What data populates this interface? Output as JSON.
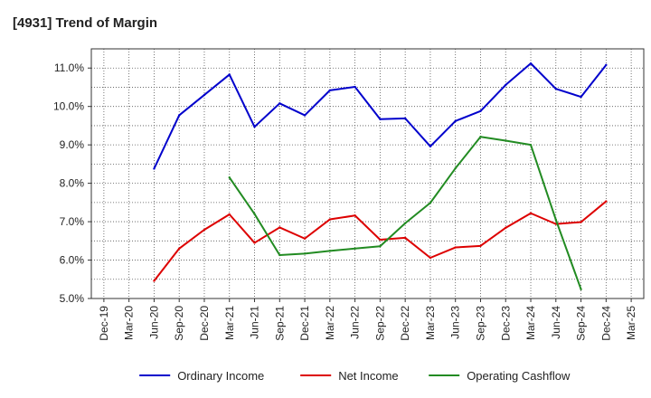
{
  "chart_data": {
    "type": "line",
    "title": "[4931]  Trend of Margin",
    "xlabel": "",
    "ylabel": "",
    "ylim": [
      5.0,
      11.5
    ],
    "yticks": [
      5.0,
      6.0,
      7.0,
      8.0,
      9.0,
      10.0,
      11.0
    ],
    "ytick_labels": [
      "5.0%",
      "6.0%",
      "7.0%",
      "8.0%",
      "9.0%",
      "10.0%",
      "11.0%"
    ],
    "categories": [
      "Dec-19",
      "Mar-20",
      "Jun-20",
      "Sep-20",
      "Dec-20",
      "Mar-21",
      "Jun-21",
      "Sep-21",
      "Dec-21",
      "Mar-22",
      "Jun-22",
      "Sep-22",
      "Dec-22",
      "Mar-23",
      "Jun-23",
      "Sep-23",
      "Dec-23",
      "Mar-24",
      "Jun-24",
      "Sep-24",
      "Dec-24",
      "Mar-25"
    ],
    "grid": true,
    "legend_position": "bottom",
    "series": [
      {
        "name": "Ordinary Income",
        "color": "#0000cc",
        "values": [
          null,
          null,
          8.38,
          9.77,
          10.3,
          10.83,
          9.47,
          10.08,
          9.77,
          10.42,
          10.51,
          9.67,
          9.69,
          8.96,
          9.62,
          9.88,
          10.56,
          11.12,
          10.46,
          10.25,
          11.08,
          null
        ]
      },
      {
        "name": "Net Income",
        "color": "#dd0000",
        "values": [
          null,
          null,
          5.46,
          6.3,
          6.79,
          7.19,
          6.45,
          6.85,
          6.56,
          7.06,
          7.16,
          6.53,
          6.58,
          6.06,
          6.33,
          6.37,
          6.84,
          7.22,
          6.94,
          6.99,
          7.53,
          null
        ]
      },
      {
        "name": "Operating Cashflow",
        "color": "#228b22",
        "values": [
          null,
          null,
          null,
          null,
          null,
          8.15,
          7.2,
          6.13,
          6.17,
          6.24,
          6.3,
          6.36,
          6.96,
          7.49,
          8.39,
          9.21,
          9.11,
          9.0,
          7.05,
          5.24,
          null,
          null
        ]
      }
    ]
  }
}
